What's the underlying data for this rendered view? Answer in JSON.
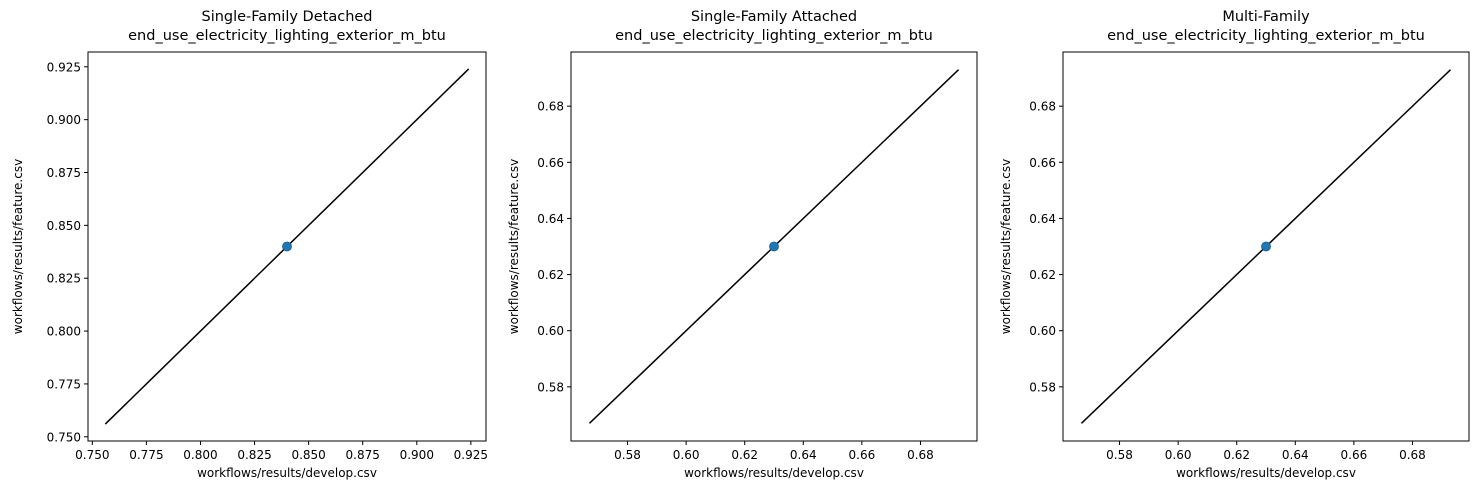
{
  "chart_data": [
    {
      "type": "scatter",
      "title": [
        "Single-Family Detached",
        "end_use_electricity_lighting_exterior_m_btu"
      ],
      "xlabel": "workflows/results/develop.csv",
      "ylabel": "workflows/results/feature.csv",
      "xlim": [
        0.748,
        0.932
      ],
      "ylim": [
        0.748,
        0.932
      ],
      "xticks": [
        0.75,
        0.775,
        0.8,
        0.825,
        0.85,
        0.875,
        0.9,
        0.925
      ],
      "xtick_labels": [
        "0.750",
        "0.775",
        "0.800",
        "0.825",
        "0.850",
        "0.875",
        "0.900",
        "0.925"
      ],
      "yticks": [
        0.75,
        0.775,
        0.8,
        0.825,
        0.85,
        0.875,
        0.9,
        0.925
      ],
      "ytick_labels": [
        "0.750",
        "0.775",
        "0.800",
        "0.825",
        "0.850",
        "0.875",
        "0.900",
        "0.925"
      ],
      "points": [
        {
          "x": 0.84,
          "y": 0.84
        }
      ],
      "reference_line": [
        [
          0.756,
          0.756
        ],
        [
          0.924,
          0.924
        ]
      ],
      "grid": false
    },
    {
      "type": "scatter",
      "title": [
        "Single-Family Attached",
        "end_use_electricity_lighting_exterior_m_btu"
      ],
      "xlabel": "workflows/results/develop.csv",
      "ylabel": "workflows/results/feature.csv",
      "xlim": [
        0.5607,
        0.6993
      ],
      "ylim": [
        0.5607,
        0.6993
      ],
      "xticks": [
        0.58,
        0.6,
        0.62,
        0.64,
        0.66,
        0.68
      ],
      "xtick_labels": [
        "0.58",
        "0.60",
        "0.62",
        "0.64",
        "0.66",
        "0.68"
      ],
      "yticks": [
        0.58,
        0.6,
        0.62,
        0.64,
        0.66,
        0.68
      ],
      "ytick_labels": [
        "0.58",
        "0.60",
        "0.62",
        "0.64",
        "0.66",
        "0.68"
      ],
      "points": [
        {
          "x": 0.63,
          "y": 0.63
        }
      ],
      "reference_line": [
        [
          0.567,
          0.567
        ],
        [
          0.693,
          0.693
        ]
      ],
      "grid": false
    },
    {
      "type": "scatter",
      "title": [
        "Multi-Family",
        "end_use_electricity_lighting_exterior_m_btu"
      ],
      "xlabel": "workflows/results/develop.csv",
      "ylabel": "workflows/results/feature.csv",
      "xlim": [
        0.5607,
        0.6993
      ],
      "ylim": [
        0.5607,
        0.6993
      ],
      "xticks": [
        0.58,
        0.6,
        0.62,
        0.64,
        0.66,
        0.68
      ],
      "xtick_labels": [
        "0.58",
        "0.60",
        "0.62",
        "0.64",
        "0.66",
        "0.68"
      ],
      "yticks": [
        0.58,
        0.6,
        0.62,
        0.64,
        0.66,
        0.68
      ],
      "ytick_labels": [
        "0.58",
        "0.60",
        "0.62",
        "0.64",
        "0.66",
        "0.68"
      ],
      "points": [
        {
          "x": 0.63,
          "y": 0.63
        }
      ],
      "reference_line": [
        [
          0.567,
          0.567
        ],
        [
          0.693,
          0.693
        ]
      ],
      "grid": false
    }
  ],
  "colors": {
    "marker": "#1f77b4",
    "marker_edge": "#1a5f90",
    "reference_line": "#000000",
    "frame": "#000000",
    "background": "#ffffff"
  }
}
